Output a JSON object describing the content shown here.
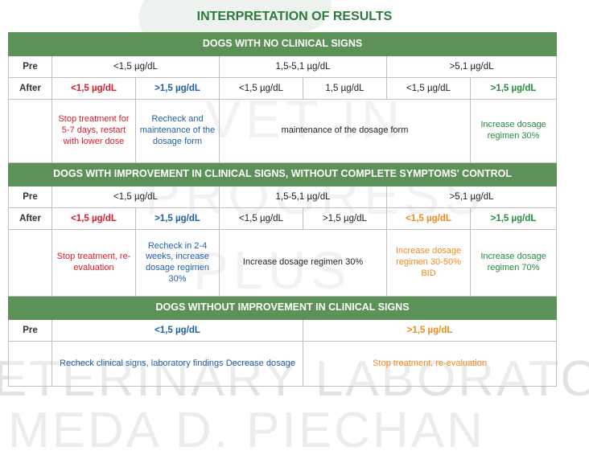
{
  "title": "INTERPRETATION OF RESULTS",
  "watermark": [
    "VET IN",
    "PROGRESS",
    "PLUS",
    "ETERINARY LABORATORIE",
    "MEDA D. PIECHAN"
  ],
  "labels": {
    "pre": "Pre",
    "after": "After"
  },
  "section1": {
    "header": "DOGS WITH NO CLINICAL SIGNS",
    "pre": [
      "<1,5 µg/dL",
      "1,5-5,1 µg/dL",
      ">5,1 µg/dL"
    ],
    "after": [
      "<1,5 µg/dL",
      ">1,5 µg/dL",
      "<1,5 µg/dL",
      "1,5 µg/dL",
      "<1,5 µg/dL",
      ">1,5 µg/dL"
    ],
    "actions": [
      "Stop treatment for 5-7 days, restart with lower dose",
      "Recheck and maintenance of the dosage form",
      "maintenance of the dosage form",
      "Increase dosage regimen 30%"
    ]
  },
  "section2": {
    "header": "DOGS WITH IMPROVEMENT IN CLINICAL SIGNS, WITHOUT COMPLETE SYMPTOMS' CONTROL",
    "pre": [
      "<1,5 µg/dL",
      "1,5-5,1 µg/dL",
      ">5,1 µg/dL"
    ],
    "after": [
      "<1,5 µg/dL",
      ">1,5 µg/dL",
      "<1,5 µg/dL",
      ">1,5 µg/dL",
      "<1,5 µg/dL",
      ">1,5 µg/dL"
    ],
    "actions": [
      "Stop treatment, re-evaluation",
      "Recheck in 2-4 weeks, increase dosage regimen 30%",
      "Increase dosage regimen 30%",
      "Increase dosage regimen 30-50% BID",
      "Increase dosage regimen 70%"
    ]
  },
  "section3": {
    "header": "DOGS WITHOUT IMPROVEMENT IN CLINICAL SIGNS",
    "pre": [
      "<1,5 µg/dL",
      ">1,5 µg/dL"
    ],
    "actions": [
      "Recheck clinical signs, laboratory findings Decrease dosage",
      "Stop treatment, re-evaluation"
    ]
  },
  "colors": {
    "header_green": "#5c9158",
    "title_green": "#2c7a3c",
    "red": "#e0192d",
    "blue": "#1f5fa8",
    "orange": "#f08a1c",
    "green": "#278a3c"
  }
}
